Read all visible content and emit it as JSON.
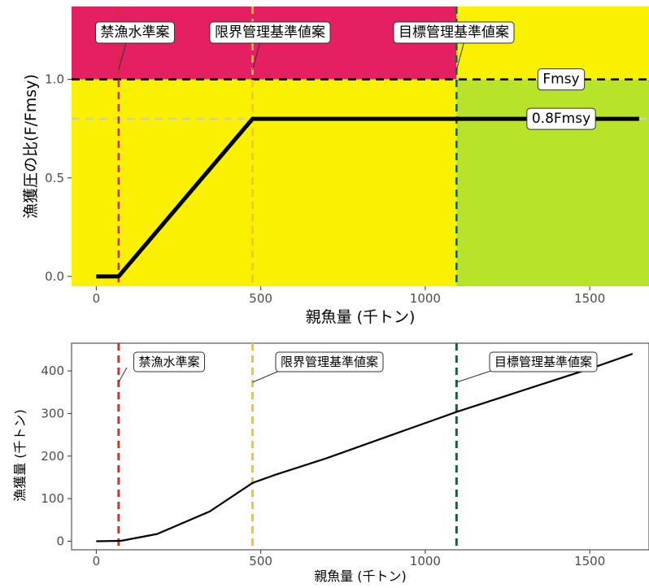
{
  "chart_data": [
    {
      "type": "line",
      "title": "",
      "xlabel": "親魚量 (千トン)",
      "ylabel": "漁獲圧の比(F/Fmsy)",
      "xlim": [
        -75,
        1680
      ],
      "ylim": [
        -0.05,
        1.37
      ],
      "xticks": [
        0,
        500,
        1000,
        1500
      ],
      "yticks": [
        0.0,
        0.5,
        1.0
      ],
      "ytick_labels": [
        "0.0",
        "0.5",
        "1.0"
      ],
      "grid": false,
      "zones": [
        {
          "name": "overfishing",
          "color": "#e41f62",
          "x": [
            -75,
            1095
          ],
          "y": [
            1.0,
            1.37
          ]
        },
        {
          "name": "caution-upper",
          "color": "#f9f002",
          "x": [
            1095,
            1680
          ],
          "y": [
            1.0,
            1.37
          ]
        },
        {
          "name": "caution-lower",
          "color": "#f9f002",
          "x": [
            -75,
            1095
          ],
          "y": [
            -0.05,
            1.0
          ]
        },
        {
          "name": "healthy",
          "color": "#b7e42a",
          "x": [
            1095,
            1680
          ],
          "y": [
            -0.05,
            1.0
          ]
        }
      ],
      "vlines": [
        {
          "label": "禁漁水準案",
          "x": 68,
          "color": "#d23030"
        },
        {
          "label": "限界管理基準値案",
          "x": 475,
          "color": "#f1c430"
        },
        {
          "label": "目標管理基準値案",
          "x": 1095,
          "color": "#1a5e40"
        }
      ],
      "hlines": [
        {
          "label": "Fmsy",
          "y": 1.0,
          "color": "#000000"
        },
        {
          "label": "0.8Fmsy",
          "y": 0.8,
          "color": "#cccccc"
        }
      ],
      "series": [
        {
          "x": [
            0,
            68,
            475,
            1650
          ],
          "y": [
            0.0,
            0.0,
            0.8,
            0.8
          ]
        }
      ]
    },
    {
      "type": "line",
      "title": "",
      "xlabel": "親魚量 (千トン)",
      "ylabel": "漁獲量 (千トン)",
      "xlim": [
        -75,
        1680
      ],
      "ylim": [
        -20,
        465
      ],
      "xticks": [
        0,
        500,
        1000,
        1500
      ],
      "yticks": [
        0,
        100,
        200,
        300,
        400
      ],
      "grid": false,
      "vlines": [
        {
          "label": "禁漁水準案",
          "x": 68,
          "color": "#c0392b"
        },
        {
          "label": "限界管理基準値案",
          "x": 475,
          "color": "#f1c430"
        },
        {
          "label": "目標管理基準値案",
          "x": 1095,
          "color": "#1a5e40"
        }
      ],
      "series": [
        {
          "x": [
            0,
            75,
            185,
            345,
            475,
            540,
            700,
            900,
            1100,
            1300,
            1500,
            1630
          ],
          "y": [
            0,
            1,
            17,
            70,
            137,
            155,
            195,
            250,
            305,
            355,
            405,
            440
          ]
        }
      ]
    }
  ]
}
